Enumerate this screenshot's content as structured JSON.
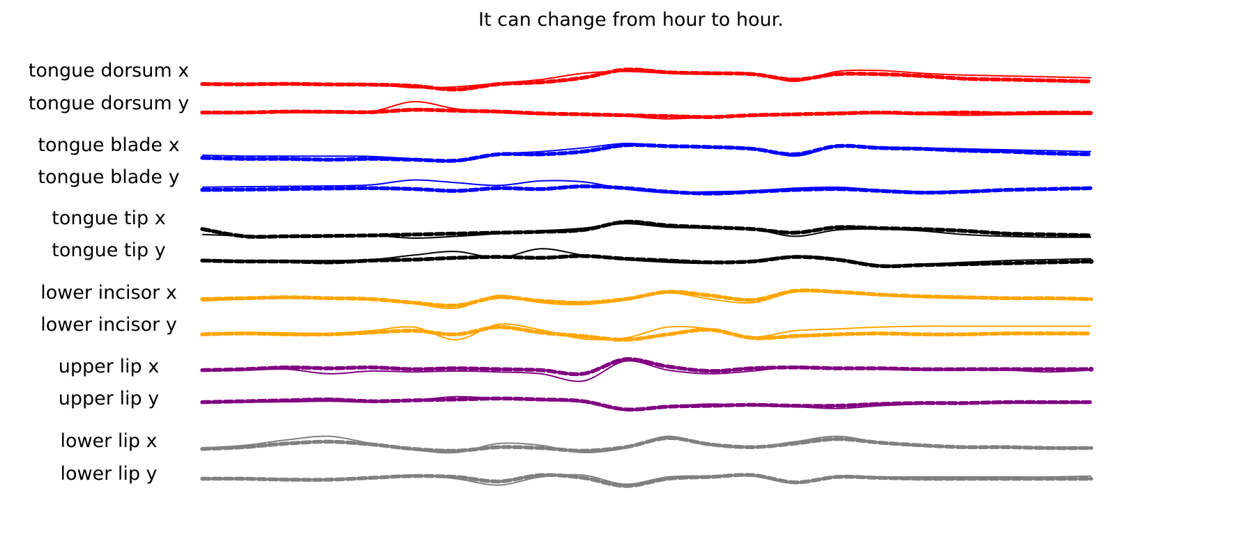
{
  "chart_data": {
    "type": "line",
    "title": "It can change from hour to hour.",
    "xlabel": "",
    "ylabel": "",
    "legend": "none",
    "grid": false,
    "axes_visible": false,
    "line_styles": {
      "measured": "dashed-thick",
      "predicted": "solid-thin"
    },
    "series": [
      {
        "label": "tongue dorsum x",
        "color": "#ff0000",
        "measured": [
          0.2,
          0.19,
          0.21,
          0.18,
          0.17,
          0.1,
          -0.1,
          0.2,
          0.3,
          0.55,
          1.0,
          0.85,
          0.8,
          0.75,
          0.45,
          0.75,
          0.75,
          0.65,
          0.5,
          0.45,
          0.4,
          0.35
        ],
        "predicted": [
          0.25,
          0.23,
          0.24,
          0.22,
          0.2,
          0.0,
          0.05,
          0.25,
          0.45,
          0.8,
          0.9,
          0.8,
          0.75,
          0.8,
          0.35,
          0.9,
          0.95,
          0.8,
          0.7,
          0.65,
          0.6,
          0.55
        ]
      },
      {
        "label": "tongue dorsum y",
        "color": "#ff0000",
        "measured": [
          0.4,
          0.4,
          0.45,
          0.44,
          0.42,
          0.55,
          0.5,
          0.45,
          0.35,
          0.3,
          0.25,
          0.2,
          0.15,
          0.25,
          0.3,
          0.35,
          0.4,
          0.35,
          0.4,
          0.35,
          0.4,
          0.38
        ],
        "predicted": [
          0.38,
          0.38,
          0.4,
          0.4,
          0.45,
          1.0,
          0.6,
          0.4,
          0.3,
          0.28,
          0.2,
          0.05,
          0.15,
          0.25,
          0.3,
          0.4,
          0.35,
          0.3,
          0.25,
          0.28,
          0.3,
          0.3
        ]
      },
      {
        "label": "tongue blade x",
        "color": "#0000ff",
        "measured": [
          0.2,
          0.15,
          0.15,
          0.1,
          0.15,
          0.1,
          0.05,
          0.4,
          0.4,
          0.55,
          0.9,
          0.85,
          0.8,
          0.7,
          0.4,
          0.85,
          0.75,
          0.7,
          0.6,
          0.55,
          0.45,
          0.4
        ],
        "predicted": [
          0.35,
          0.3,
          0.3,
          0.3,
          0.28,
          0.15,
          0.0,
          0.4,
          0.55,
          0.75,
          1.0,
          0.85,
          0.8,
          0.75,
          0.3,
          0.85,
          0.8,
          0.75,
          0.7,
          0.65,
          0.6,
          0.55
        ]
      },
      {
        "label": "tongue blade y",
        "color": "#0000ff",
        "measured": [
          0.2,
          0.22,
          0.25,
          0.28,
          0.3,
          0.25,
          0.15,
          0.3,
          0.25,
          0.4,
          0.3,
          0.1,
          0.0,
          0.1,
          0.2,
          0.25,
          0.15,
          0.05,
          0.1,
          0.2,
          0.25,
          0.3
        ],
        "predicted": [
          0.35,
          0.38,
          0.4,
          0.42,
          0.48,
          0.75,
          0.6,
          0.45,
          0.7,
          0.65,
          0.25,
          0.05,
          0.1,
          0.15,
          0.3,
          0.35,
          0.2,
          0.1,
          0.15,
          0.2,
          0.25,
          0.3
        ]
      },
      {
        "label": "tongue tip x",
        "color": "#000000",
        "measured": [
          0.5,
          0.1,
          0.1,
          0.12,
          0.15,
          0.2,
          0.25,
          0.3,
          0.35,
          0.45,
          0.9,
          0.7,
          0.6,
          0.5,
          0.3,
          0.6,
          0.55,
          0.5,
          0.4,
          0.25,
          0.2,
          0.15
        ],
        "predicted": [
          0.2,
          0.12,
          0.12,
          0.12,
          0.15,
          0.0,
          0.1,
          0.25,
          0.4,
          0.55,
          0.8,
          0.6,
          0.55,
          0.5,
          0.1,
          0.45,
          0.5,
          0.4,
          0.2,
          0.1,
          0.05,
          0.05
        ]
      },
      {
        "label": "tongue tip y",
        "color": "#000000",
        "measured": [
          0.3,
          0.25,
          0.25,
          0.2,
          0.3,
          0.35,
          0.45,
          0.5,
          0.45,
          0.55,
          0.4,
          0.3,
          0.2,
          0.25,
          0.5,
          0.35,
          0.0,
          0.05,
          0.1,
          0.15,
          0.2,
          0.25
        ],
        "predicted": [
          0.35,
          0.3,
          0.3,
          0.3,
          0.35,
          0.6,
          0.8,
          0.45,
          0.95,
          0.6,
          0.35,
          0.2,
          0.15,
          0.3,
          0.55,
          0.4,
          0.05,
          0.1,
          0.2,
          0.3,
          0.35,
          0.4
        ],
        "end_marker": true
      },
      {
        "label": "lower incisor x",
        "color": "#ffa500",
        "measured": [
          0.4,
          0.45,
          0.5,
          0.45,
          0.4,
          0.2,
          0.05,
          0.5,
          0.3,
          0.2,
          0.4,
          0.8,
          0.6,
          0.35,
          0.85,
          0.8,
          0.65,
          0.55,
          0.5,
          0.45,
          0.45,
          0.4
        ],
        "predicted": [
          0.3,
          0.4,
          0.45,
          0.45,
          0.4,
          0.15,
          -0.1,
          0.6,
          0.2,
          0.1,
          0.35,
          0.75,
          0.4,
          0.2,
          0.8,
          0.75,
          0.6,
          0.5,
          0.45,
          0.45,
          0.4,
          0.4
        ]
      },
      {
        "label": "lower incisor y",
        "color": "#ffa500",
        "measured": [
          0.3,
          0.35,
          0.3,
          0.3,
          0.4,
          0.5,
          0.3,
          0.7,
          0.4,
          0.2,
          0.0,
          0.3,
          0.55,
          0.1,
          0.2,
          0.3,
          0.35,
          0.3,
          0.3,
          0.35,
          0.35,
          0.35
        ],
        "predicted": [
          0.35,
          0.4,
          0.38,
          0.35,
          0.5,
          0.7,
          0.0,
          0.85,
          0.55,
          0.05,
          0.1,
          0.7,
          0.6,
          0.15,
          0.5,
          0.6,
          0.7,
          0.75,
          0.75,
          0.75,
          0.75,
          0.75
        ]
      },
      {
        "label": "upper lip x",
        "color": "#800080",
        "measured": [
          0.4,
          0.45,
          0.55,
          0.5,
          0.55,
          0.45,
          0.5,
          0.45,
          0.4,
          0.2,
          1.0,
          0.6,
          0.35,
          0.5,
          0.55,
          0.5,
          0.5,
          0.45,
          0.45,
          0.45,
          0.45,
          0.45
        ],
        "predicted": [
          0.35,
          0.4,
          0.45,
          0.2,
          0.35,
          0.3,
          0.35,
          0.3,
          0.2,
          -0.2,
          0.9,
          0.4,
          0.2,
          0.35,
          0.6,
          0.5,
          0.45,
          0.4,
          0.4,
          0.4,
          0.3,
          0.4
        ],
        "end_marker": true
      },
      {
        "label": "upper lip y",
        "color": "#800080",
        "measured": [
          0.4,
          0.45,
          0.5,
          0.55,
          0.45,
          0.5,
          0.55,
          0.6,
          0.55,
          0.45,
          0.0,
          0.15,
          0.2,
          0.25,
          0.2,
          0.2,
          0.3,
          0.35,
          0.35,
          0.4,
          0.4,
          0.4
        ],
        "predicted": [
          0.35,
          0.4,
          0.42,
          0.45,
          0.4,
          0.5,
          0.7,
          0.6,
          0.5,
          0.4,
          -0.05,
          0.15,
          0.3,
          0.2,
          0.15,
          0.05,
          0.2,
          0.3,
          0.35,
          0.35,
          0.35,
          0.35
        ]
      },
      {
        "label": "lower lip x",
        "color": "#808080",
        "measured": [
          0.2,
          0.3,
          0.5,
          0.6,
          0.45,
          0.2,
          0.1,
          0.3,
          0.25,
          0.1,
          0.3,
          0.8,
          0.45,
          0.3,
          0.5,
          0.75,
          0.55,
          0.4,
          0.3,
          0.3,
          0.25,
          0.25
        ],
        "predicted": [
          0.25,
          0.4,
          0.7,
          0.9,
          0.5,
          0.15,
          0.0,
          0.5,
          0.4,
          0.0,
          0.25,
          0.9,
          0.4,
          0.3,
          0.6,
          0.9,
          0.55,
          0.35,
          0.3,
          0.3,
          0.28,
          0.3
        ]
      },
      {
        "label": "lower lip y",
        "color": "#808080",
        "measured": [
          0.4,
          0.4,
          0.35,
          0.35,
          0.45,
          0.55,
          0.5,
          0.25,
          0.6,
          0.45,
          0.0,
          0.4,
          0.5,
          0.6,
          0.2,
          0.5,
          0.45,
          0.4,
          0.4,
          0.4,
          0.4,
          0.4
        ],
        "predicted": [
          0.45,
          0.4,
          0.4,
          0.35,
          0.45,
          0.6,
          0.4,
          0.05,
          0.5,
          0.6,
          0.1,
          0.5,
          0.55,
          0.55,
          0.15,
          0.55,
          0.5,
          0.5,
          0.5,
          0.5,
          0.5,
          0.55
        ]
      }
    ]
  }
}
